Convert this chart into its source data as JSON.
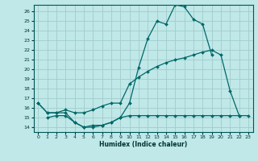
{
  "xlabel": "Humidex (Indice chaleur)",
  "bg_color": "#c0e8e8",
  "grid_color": "#a0cccc",
  "line_color": "#006868",
  "xlim": [
    -0.5,
    23.5
  ],
  "ylim": [
    13.5,
    26.7
  ],
  "xticks": [
    0,
    1,
    2,
    3,
    4,
    5,
    6,
    7,
    8,
    9,
    10,
    11,
    12,
    13,
    14,
    15,
    16,
    17,
    18,
    19,
    20,
    21,
    22,
    23
  ],
  "yticks": [
    14,
    15,
    16,
    17,
    18,
    19,
    20,
    21,
    22,
    23,
    24,
    25,
    26
  ],
  "line1_x": [
    0,
    1,
    2,
    3,
    4,
    5,
    6,
    7,
    8,
    9,
    10,
    11,
    12,
    13,
    14,
    15,
    16,
    17,
    18,
    19
  ],
  "line1_y": [
    16.5,
    15.5,
    15.5,
    15.5,
    14.5,
    14.0,
    14.0,
    14.2,
    14.5,
    15.0,
    16.5,
    20.2,
    23.2,
    25.0,
    24.7,
    26.7,
    26.5,
    25.2,
    24.7,
    21.5
  ],
  "line2_x": [
    0,
    1,
    2,
    3,
    4,
    5,
    6,
    7,
    8,
    9,
    10,
    11,
    12,
    13,
    14,
    15,
    16,
    17,
    18,
    19,
    20,
    21,
    22
  ],
  "line2_y": [
    16.5,
    15.5,
    15.5,
    15.8,
    15.5,
    15.5,
    15.8,
    16.2,
    16.5,
    16.5,
    18.5,
    19.2,
    19.8,
    20.3,
    20.7,
    21.0,
    21.2,
    21.5,
    21.8,
    22.0,
    21.5,
    17.8,
    15.2
  ],
  "line3_x": [
    1,
    2,
    3,
    4,
    5,
    6,
    7,
    8,
    9,
    10,
    11,
    12,
    13,
    14,
    15,
    16,
    17,
    18,
    19,
    20,
    21,
    22,
    23
  ],
  "line3_y": [
    15.0,
    15.2,
    15.2,
    14.5,
    14.0,
    14.2,
    14.2,
    14.5,
    15.0,
    15.2,
    15.2,
    15.2,
    15.2,
    15.2,
    15.2,
    15.2,
    15.2,
    15.2,
    15.2,
    15.2,
    15.2,
    15.2,
    15.2
  ]
}
